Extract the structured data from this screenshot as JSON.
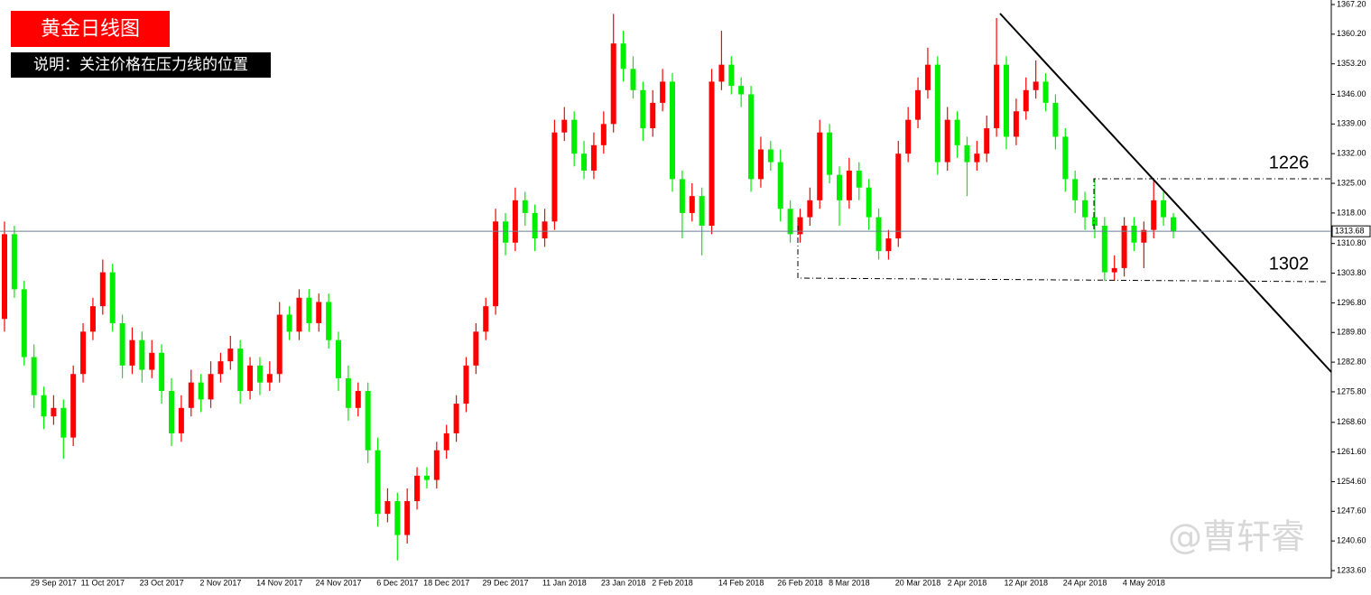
{
  "chart_data": {
    "type": "candlestick",
    "title": "黄金日线图",
    "subtitle": "说明：关注价格在压力线的位置",
    "annotations": [
      "1226",
      "1302"
    ],
    "watermark": "@曹轩睿",
    "up_color": "#ff0000",
    "down_color": "#00ee00",
    "categories": [
      null,
      null,
      null,
      null,
      null,
      "29 Sep 2017",
      null,
      null,
      null,
      null,
      "11 Oct 2017",
      null,
      null,
      null,
      null,
      null,
      "23 Oct 2017",
      null,
      null,
      null,
      null,
      null,
      "2 Nov 2017",
      null,
      null,
      null,
      null,
      null,
      "14 Nov 2017",
      null,
      null,
      null,
      null,
      null,
      "24 Nov 2017",
      null,
      null,
      null,
      null,
      null,
      "6 Dec 2017",
      null,
      null,
      null,
      null,
      "18 Dec 2017",
      null,
      null,
      null,
      null,
      null,
      "29 Dec 2017",
      null,
      null,
      null,
      null,
      null,
      "11 Jan 2018",
      null,
      null,
      null,
      null,
      null,
      "23 Jan 2018",
      null,
      null,
      null,
      null,
      "2 Feb 2018",
      null,
      null,
      null,
      null,
      null,
      null,
      "14 Feb 2018",
      null,
      null,
      null,
      null,
      null,
      "26 Feb 2018",
      null,
      null,
      null,
      null,
      "8 Mar 2018",
      null,
      null,
      null,
      null,
      null,
      null,
      "20 Mar 2018",
      null,
      null,
      null,
      null,
      "2 Apr 2018",
      null,
      null,
      null,
      null,
      null,
      "12 Apr 2018",
      null,
      null,
      null,
      null,
      null,
      "24 Apr 2018",
      null,
      null,
      null,
      null,
      null,
      "4 May 2018",
      null,
      null,
      null
    ],
    "open": [
      1293,
      1313,
      1300,
      1284,
      1275,
      1270,
      1272,
      1265,
      1280,
      1290,
      1296,
      1304,
      1292,
      1282,
      1288,
      1281,
      1285,
      1276,
      1266,
      1272,
      1278,
      1274,
      1280,
      1283,
      1286,
      1276,
      1282,
      1278,
      1280,
      1294,
      1290,
      1298,
      1292,
      1297,
      1288,
      1279,
      1272,
      1276,
      1262,
      1247,
      1250,
      1242,
      1250,
      1256,
      1255,
      1262,
      1266,
      1273,
      1282,
      1290,
      1296,
      1316,
      1311,
      1321,
      1318,
      1312,
      1316,
      1337,
      1340,
      1332,
      1328,
      1334,
      1339,
      1358,
      1352,
      1347,
      1338,
      1344,
      1349,
      1326,
      1318,
      1322,
      1315,
      1349,
      1353,
      1348,
      1346,
      1326,
      1333,
      1330,
      1319,
      1313,
      1317,
      1321,
      1337,
      1327,
      1321,
      1328,
      1324,
      1317,
      1309,
      1312,
      1332,
      1340,
      1347,
      1353,
      1330,
      1340,
      1334,
      1330,
      1332,
      1338,
      1353,
      1336,
      1342,
      1347,
      1349,
      1344,
      1336,
      1326,
      1321,
      1317,
      1315,
      1304,
      1305,
      1315,
      1311,
      1314,
      1321,
      1317
    ],
    "high": [
      1316,
      1315,
      1302,
      1287,
      1277,
      1275,
      1274,
      1282,
      1292,
      1298,
      1307,
      1306,
      1294,
      1291,
      1290,
      1288,
      1287,
      1279,
      1275,
      1281,
      1280,
      1283,
      1285,
      1289,
      1288,
      1284,
      1284,
      1283,
      1297,
      1296,
      1300,
      1300,
      1299,
      1299,
      1290,
      1282,
      1278,
      1278,
      1265,
      1253,
      1252,
      1253,
      1258,
      1258,
      1264,
      1268,
      1275,
      1284,
      1292,
      1298,
      1319,
      1318,
      1324,
      1323,
      1320,
      1319,
      1340,
      1343,
      1342,
      1335,
      1337,
      1342,
      1365,
      1361,
      1355,
      1349,
      1347,
      1352,
      1351,
      1328,
      1325,
      1324,
      1352,
      1361,
      1355,
      1350,
      1348,
      1336,
      1335,
      1333,
      1321,
      1319,
      1324,
      1340,
      1339,
      1329,
      1331,
      1330,
      1326,
      1319,
      1314,
      1335,
      1343,
      1350,
      1357,
      1355,
      1343,
      1342,
      1336,
      1335,
      1341,
      1364,
      1355,
      1345,
      1350,
      1354,
      1351,
      1346,
      1338,
      1328,
      1323,
      1326,
      1317,
      1308,
      1317,
      1317,
      1316,
      1326,
      1323,
      1318
    ],
    "low": [
      1290,
      1298,
      1282,
      1272,
      1267,
      1268,
      1260,
      1263,
      1278,
      1288,
      1294,
      1290,
      1279,
      1280,
      1278,
      1279,
      1273,
      1263,
      1264,
      1270,
      1271,
      1272,
      1278,
      1281,
      1273,
      1274,
      1275,
      1276,
      1278,
      1288,
      1288,
      1290,
      1290,
      1286,
      1276,
      1269,
      1270,
      1259,
      1244,
      1245,
      1236,
      1240,
      1248,
      1253,
      1253,
      1260,
      1264,
      1271,
      1280,
      1288,
      1294,
      1308,
      1309,
      1315,
      1309,
      1310,
      1314,
      1335,
      1329,
      1326,
      1326,
      1332,
      1337,
      1349,
      1345,
      1335,
      1336,
      1342,
      1323,
      1312,
      1316,
      1308,
      1313,
      1347,
      1346,
      1343,
      1323,
      1324,
      1328,
      1316,
      1311,
      1311,
      1315,
      1319,
      1325,
      1315,
      1319,
      1321,
      1314,
      1307,
      1307,
      1310,
      1330,
      1338,
      1345,
      1327,
      1328,
      1331,
      1322,
      1328,
      1330,
      1336,
      1333,
      1334,
      1340,
      1345,
      1342,
      1333,
      1323,
      1318,
      1314,
      1312,
      1302,
      1302,
      1303,
      1309,
      1305,
      1312,
      1315,
      1312
    ],
    "close": [
      1313,
      1300,
      1284,
      1275,
      1270,
      1272,
      1265,
      1280,
      1290,
      1296,
      1304,
      1292,
      1282,
      1288,
      1281,
      1285,
      1276,
      1266,
      1272,
      1278,
      1274,
      1280,
      1283,
      1286,
      1276,
      1282,
      1278,
      1280,
      1294,
      1290,
      1298,
      1292,
      1297,
      1288,
      1279,
      1272,
      1276,
      1262,
      1247,
      1250,
      1242,
      1250,
      1256,
      1255,
      1262,
      1266,
      1273,
      1282,
      1290,
      1296,
      1316,
      1311,
      1321,
      1318,
      1312,
      1316,
      1337,
      1340,
      1332,
      1328,
      1334,
      1339,
      1358,
      1352,
      1347,
      1338,
      1344,
      1349,
      1326,
      1318,
      1322,
      1315,
      1349,
      1353,
      1348,
      1346,
      1326,
      1333,
      1330,
      1319,
      1313,
      1317,
      1321,
      1337,
      1327,
      1321,
      1328,
      1324,
      1317,
      1309,
      1312,
      1332,
      1340,
      1347,
      1353,
      1330,
      1340,
      1334,
      1330,
      1332,
      1338,
      1353,
      1336,
      1342,
      1347,
      1349,
      1344,
      1336,
      1326,
      1321,
      1317,
      1315,
      1304,
      1305,
      1315,
      1311,
      1314,
      1321,
      1317,
      1313.68
    ],
    "current_price": {
      "value": 1313.68,
      "label": "1313.68"
    },
    "ylim": [
      1233.6,
      1367.2
    ],
    "yticks": [
      {
        "value": 1367.2,
        "label": "1367.20"
      },
      {
        "value": 1360.2,
        "label": "1360.20"
      },
      {
        "value": 1353.2,
        "label": "1353.20"
      },
      {
        "value": 1346,
        "label": "1346.00"
      },
      {
        "value": 1339,
        "label": "1339.00"
      },
      {
        "value": 1332,
        "label": "1332.00"
      },
      {
        "value": 1325,
        "label": "1325.00"
      },
      {
        "value": 1318,
        "label": "1318.00"
      },
      {
        "value": 1310.8,
        "label": "1310.80"
      },
      {
        "value": 1303.8,
        "label": "1303.80"
      },
      {
        "value": 1296.8,
        "label": "1296.80"
      },
      {
        "value": 1289.8,
        "label": "1289.80"
      },
      {
        "value": 1282.8,
        "label": "1282.80"
      },
      {
        "value": 1275.8,
        "label": "1275.80"
      },
      {
        "value": 1268.6,
        "label": "1268.60"
      },
      {
        "value": 1261.6,
        "label": "1261.60"
      },
      {
        "value": 1254.6,
        "label": "1254.60"
      },
      {
        "value": 1247.6,
        "label": "1247.60"
      },
      {
        "value": 1240.6,
        "label": "1240.60"
      },
      {
        "value": 1233.6,
        "label": "1233.60"
      }
    ]
  }
}
